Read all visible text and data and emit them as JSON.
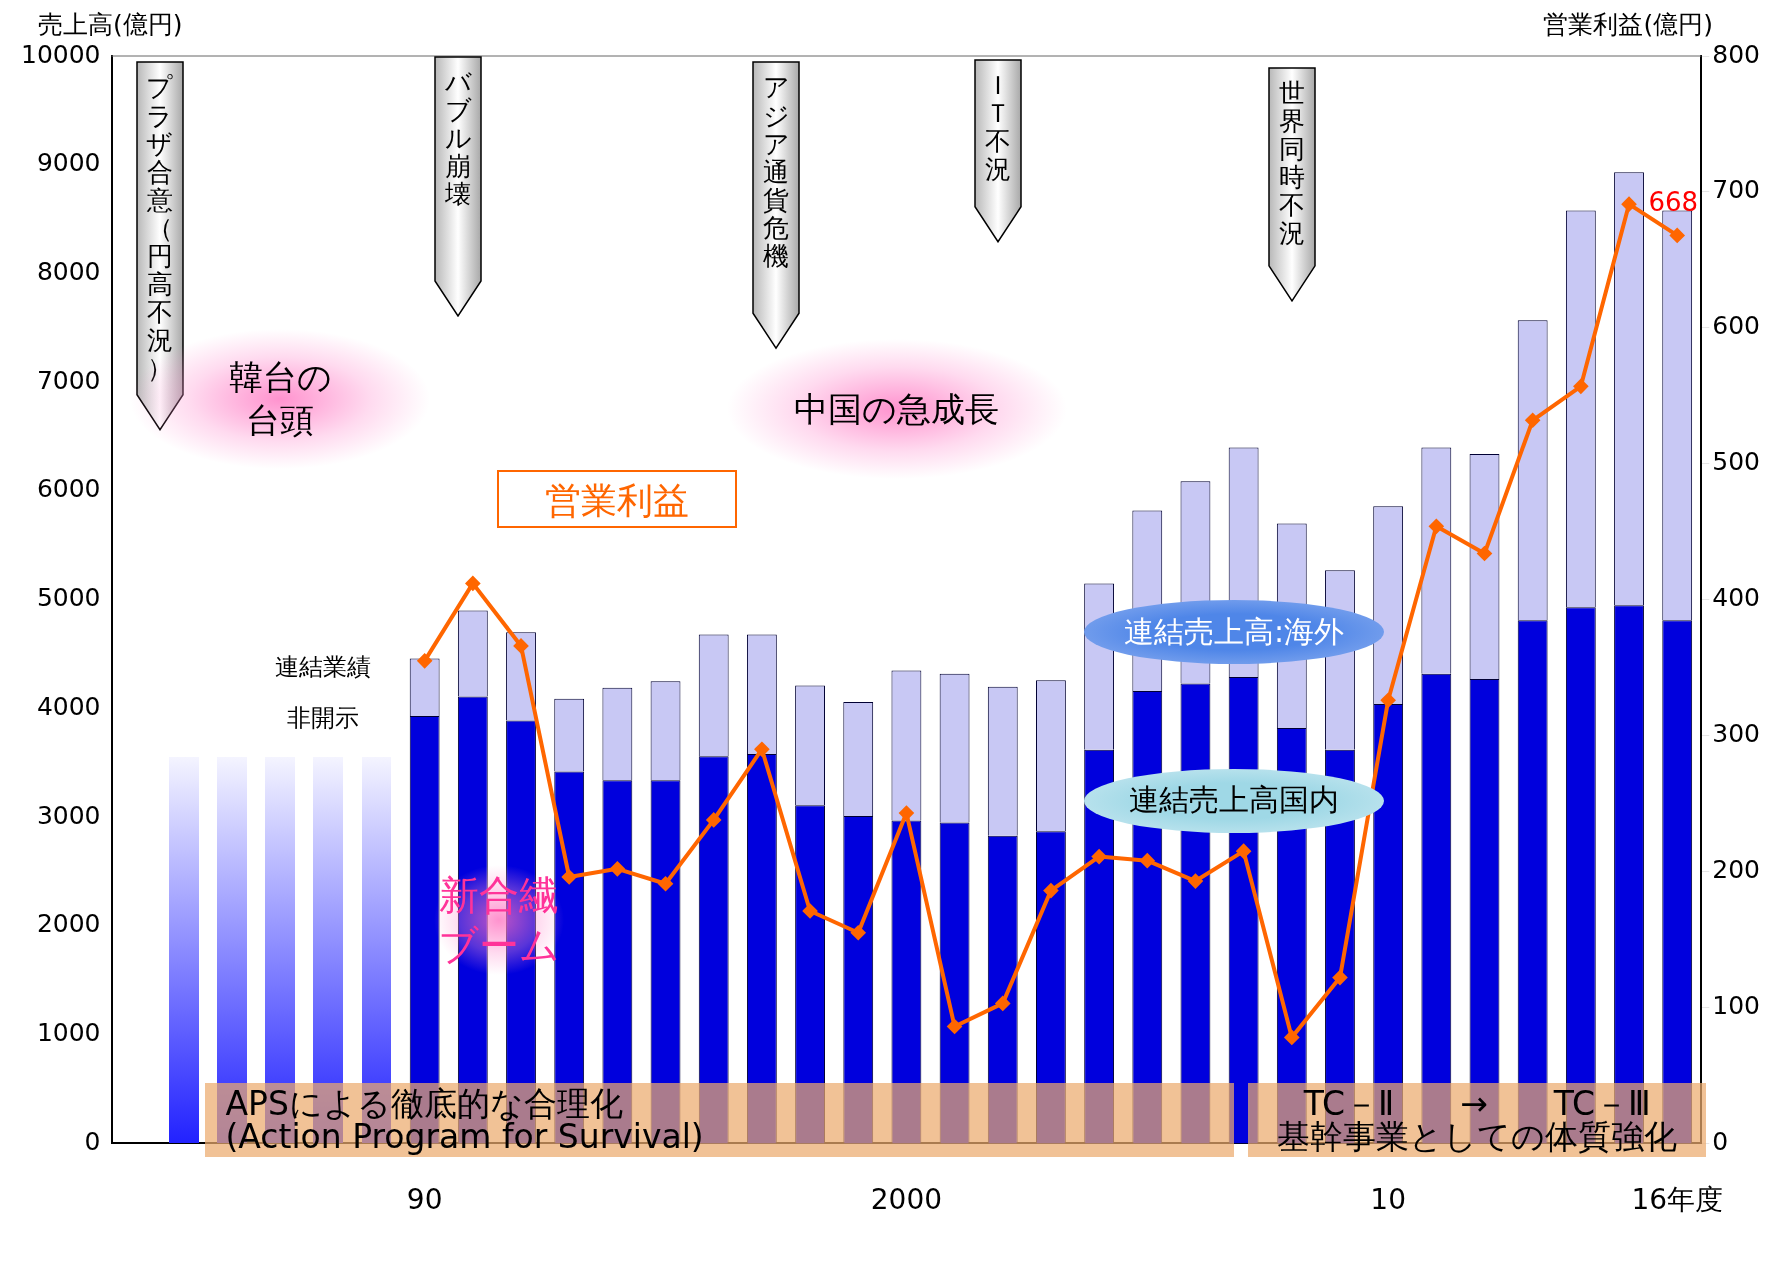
{
  "chart_data": {
    "type": "bar",
    "ylabel": "売上高(億円)",
    "y2label": "営業利益(億円)",
    "categories": [
      null,
      null,
      null,
      null,
      null,
      null,
      "90",
      null,
      null,
      null,
      null,
      null,
      null,
      null,
      null,
      null,
      "2000",
      null,
      null,
      null,
      null,
      null,
      null,
      null,
      null,
      null,
      "10",
      null,
      null,
      null,
      null,
      null,
      "16年度"
    ],
    "series": [
      {
        "name": "連結売上高国内",
        "color": "#0000dd",
        "values": [
          null,
          null,
          null,
          null,
          null,
          null,
          3930,
          4110,
          3890,
          3420,
          3340,
          3340,
          3560,
          3580,
          3110,
          3010,
          2970,
          2950,
          2830,
          2870,
          3620,
          4160,
          4230,
          4290,
          3820,
          3620,
          4040,
          4320,
          4270,
          4810,
          4930,
          4950,
          4810
        ]
      },
      {
        "name": "連結売上高:海外",
        "color": "#c8c8f4",
        "values": [
          null,
          null,
          null,
          null,
          null,
          null,
          530,
          790,
          810,
          670,
          850,
          910,
          1120,
          1100,
          1100,
          1050,
          1380,
          1370,
          1370,
          1390,
          1530,
          1660,
          1860,
          2110,
          1880,
          1650,
          1820,
          2080,
          2070,
          2760,
          3650,
          3980,
          3770
        ]
      },
      {
        "name": "営業利益",
        "type": "line",
        "axis": "y2",
        "color": "#ff6600",
        "values": [
          null,
          null,
          null,
          null,
          null,
          null,
          355,
          412,
          366,
          196,
          202,
          191,
          238,
          290,
          171,
          155,
          243,
          86,
          103,
          186,
          211,
          208,
          193,
          215,
          78,
          122,
          326,
          454,
          434,
          532,
          557,
          691,
          668
        ],
        "value_labels": [
          null,
          null,
          null,
          null,
          null,
          null,
          null,
          null,
          null,
          null,
          null,
          null,
          null,
          null,
          null,
          null,
          null,
          null,
          null,
          null,
          null,
          null,
          null,
          null,
          null,
          null,
          null,
          null,
          null,
          null,
          null,
          null,
          "668"
        ]
      }
    ],
    "stacked": true,
    "marker": "diamond",
    "legend": false,
    "grid": false,
    "ylim": [
      0,
      10000
    ],
    "yticks": [
      0,
      1000,
      2000,
      3000,
      4000,
      5000,
      6000,
      7000,
      8000,
      9000,
      10000
    ],
    "y2lim": [
      0,
      800
    ],
    "y2ticks": [
      0,
      100,
      200,
      300,
      400,
      500,
      600,
      700,
      800
    ],
    "annotations": [
      "プラザ合意（円高不況）",
      "バブル崩壊",
      "アジア通貨危機",
      "ＩＴ不況",
      "世界同時不況",
      "韓台の台頭",
      "中国の急成長",
      "新合繊ブーム",
      "連結業績非開示",
      "APSによる徹底的な合理化\n(Action Program for Survival)",
      "TC－Ⅱ　　→　　TC－Ⅲ\n基幹事業としての体質強化"
    ]
  }
}
